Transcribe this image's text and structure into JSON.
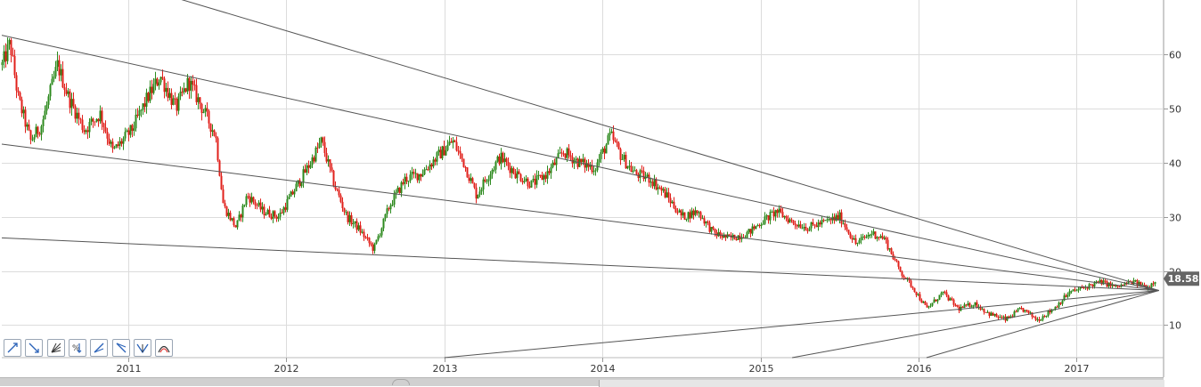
{
  "colors": {
    "up": "#2d8a1e",
    "down": "#e0201b",
    "grid": "#dcdcdc",
    "trendline": "#555555",
    "price_tag_bg": "#666666"
  },
  "toolbar": [
    {
      "icon": "trend-line-up-icon"
    },
    {
      "icon": "trend-line-down-icon"
    },
    {
      "icon": "fibonacci-fan-icon"
    },
    {
      "icon": "percent-retracement-icon"
    },
    {
      "icon": "speed-line-up-icon"
    },
    {
      "icon": "speed-line-down-icon"
    },
    {
      "icon": "gann-fan-icon"
    },
    {
      "icon": "arc-icon"
    }
  ],
  "current_price_label": "18.58",
  "chart_data": {
    "type": "candlestick",
    "xlabel": "",
    "ylabel": "",
    "x_tick_labels": [
      "2011",
      "2012",
      "2013",
      "2014",
      "2015",
      "2016",
      "2017"
    ],
    "y_tick_labels": [
      "10",
      "20",
      "30",
      "40",
      "50",
      "60"
    ],
    "xlim": [
      2010.2,
      2017.55
    ],
    "ylim": [
      4,
      70
    ],
    "grid": true,
    "current_price": 18.58,
    "price_path": [
      [
        2010.2,
        58
      ],
      [
        2010.25,
        62
      ],
      [
        2010.3,
        52
      ],
      [
        2010.38,
        44
      ],
      [
        2010.45,
        47
      ],
      [
        2010.55,
        58
      ],
      [
        2010.62,
        52
      ],
      [
        2010.72,
        46
      ],
      [
        2010.82,
        49
      ],
      [
        2010.9,
        42
      ],
      [
        2011.02,
        46
      ],
      [
        2011.12,
        52
      ],
      [
        2011.2,
        56
      ],
      [
        2011.3,
        50
      ],
      [
        2011.38,
        55
      ],
      [
        2011.45,
        51
      ],
      [
        2011.55,
        45
      ],
      [
        2011.6,
        32
      ],
      [
        2011.68,
        28
      ],
      [
        2011.75,
        34
      ],
      [
        2011.85,
        31
      ],
      [
        2011.95,
        30
      ],
      [
        2012.05,
        35
      ],
      [
        2012.15,
        40
      ],
      [
        2012.22,
        44
      ],
      [
        2012.3,
        36
      ],
      [
        2012.38,
        30
      ],
      [
        2012.45,
        28
      ],
      [
        2012.55,
        24
      ],
      [
        2012.65,
        32
      ],
      [
        2012.75,
        37
      ],
      [
        2012.85,
        38
      ],
      [
        2012.95,
        41
      ],
      [
        2013.05,
        44
      ],
      [
        2013.12,
        40
      ],
      [
        2013.2,
        34
      ],
      [
        2013.28,
        38
      ],
      [
        2013.35,
        41
      ],
      [
        2013.45,
        38
      ],
      [
        2013.55,
        36
      ],
      [
        2013.65,
        38
      ],
      [
        2013.75,
        42
      ],
      [
        2013.85,
        40
      ],
      [
        2013.95,
        39
      ],
      [
        2014.05,
        45
      ],
      [
        2014.12,
        41
      ],
      [
        2014.2,
        38
      ],
      [
        2014.3,
        37
      ],
      [
        2014.4,
        34
      ],
      [
        2014.5,
        30
      ],
      [
        2014.6,
        31
      ],
      [
        2014.7,
        27
      ],
      [
        2014.8,
        26
      ],
      [
        2014.92,
        27
      ],
      [
        2015.0,
        29
      ],
      [
        2015.1,
        31
      ],
      [
        2015.2,
        29
      ],
      [
        2015.3,
        28
      ],
      [
        2015.4,
        29
      ],
      [
        2015.5,
        30
      ],
      [
        2015.6,
        25
      ],
      [
        2015.7,
        27
      ],
      [
        2015.78,
        26
      ],
      [
        2015.88,
        20
      ],
      [
        2015.96,
        17
      ],
      [
        2016.05,
        13
      ],
      [
        2016.15,
        16
      ],
      [
        2016.25,
        13
      ],
      [
        2016.35,
        14
      ],
      [
        2016.45,
        12
      ],
      [
        2016.55,
        11
      ],
      [
        2016.65,
        13
      ],
      [
        2016.75,
        11
      ],
      [
        2016.85,
        13
      ],
      [
        2016.95,
        16
      ],
      [
        2017.05,
        17
      ],
      [
        2017.15,
        18
      ],
      [
        2017.25,
        17
      ],
      [
        2017.35,
        18
      ],
      [
        2017.45,
        17
      ],
      [
        2017.5,
        18.58
      ]
    ],
    "trendlines": [
      {
        "from": [
          2010.2,
          63.5
        ],
        "to": [
          2017.52,
          16.4
        ]
      },
      {
        "from": [
          2010.2,
          43.4
        ],
        "to": [
          2017.52,
          16.4
        ]
      },
      {
        "from": [
          2010.2,
          26.1
        ],
        "to": [
          2017.52,
          16.4
        ]
      },
      {
        "from": [
          2011.0,
          73.0
        ],
        "to": [
          2017.52,
          16.4
        ]
      },
      {
        "from": [
          2013.0,
          4.0
        ],
        "to": [
          2017.52,
          16.4
        ]
      },
      {
        "from": [
          2015.2,
          4.0
        ],
        "to": [
          2017.52,
          16.4
        ]
      },
      {
        "from": [
          2016.05,
          4.0
        ],
        "to": [
          2017.52,
          16.4
        ]
      }
    ]
  }
}
